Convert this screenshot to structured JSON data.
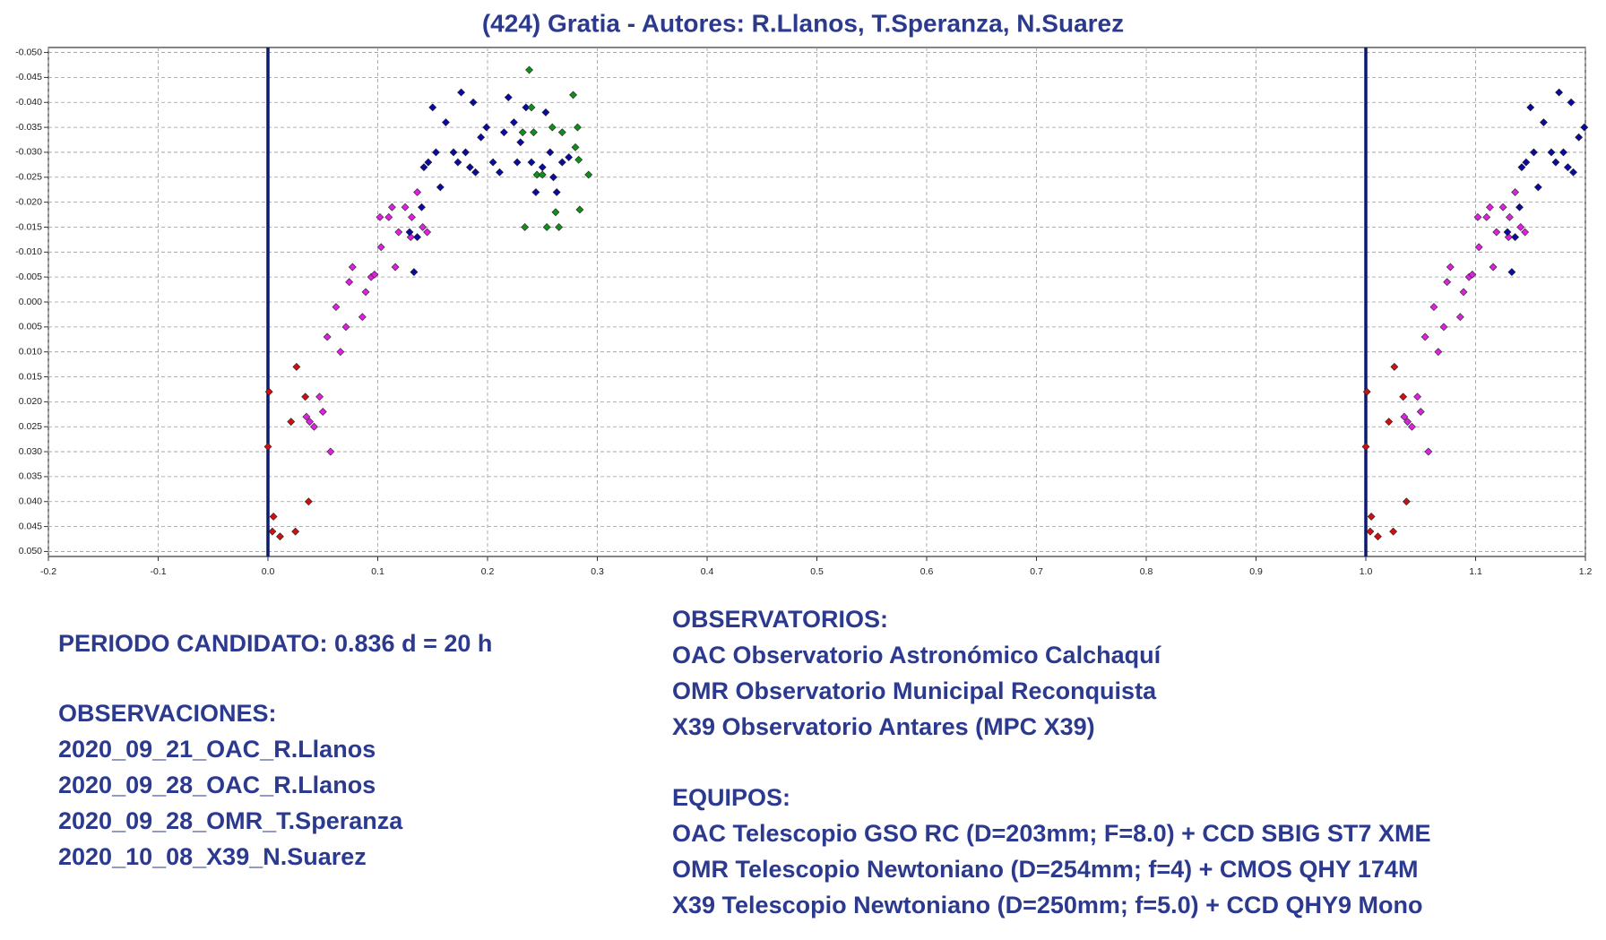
{
  "chart_data": {
    "type": "scatter",
    "title": "(424) Gratia - Autores: R.Llanos, T.Speranza, N.Suarez",
    "xlim": [
      -0.2,
      1.2
    ],
    "ylim": [
      -0.051,
      0.051
    ],
    "y_inverted": true,
    "grid": true,
    "vlines": [
      0,
      1
    ],
    "vline_color": "#0c1a6e",
    "xticks": [
      -0.2,
      -0.1,
      {
        "value": 0,
        "label": "0.0"
      },
      0.1,
      0.2,
      0.3,
      0.4,
      0.5,
      0.6,
      0.7,
      0.8,
      0.9,
      {
        "value": 1,
        "label": "1.0"
      },
      1.1,
      1.2
    ],
    "yticks": [
      {
        "value": -0.05,
        "label": "-0.050"
      },
      {
        "value": -0.045,
        "label": "-0.045"
      },
      {
        "value": -0.04,
        "label": "-0.040"
      },
      {
        "value": -0.035,
        "label": "-0.035"
      },
      {
        "value": -0.03,
        "label": "-0.030"
      },
      {
        "value": -0.025,
        "label": "-0.025"
      },
      {
        "value": -0.02,
        "label": "-0.020"
      },
      {
        "value": -0.015,
        "label": "-0.015"
      },
      {
        "value": -0.01,
        "label": "-0.010"
      },
      {
        "value": -0.005,
        "label": "-0.005"
      },
      {
        "value": 0,
        "label": "0.000"
      },
      {
        "value": 0.005,
        "label": "0.005"
      },
      {
        "value": 0.01,
        "label": "0.010"
      },
      {
        "value": 0.015,
        "label": "0.015"
      },
      {
        "value": 0.02,
        "label": "0.020"
      },
      {
        "value": 0.025,
        "label": "0.025"
      },
      {
        "value": 0.03,
        "label": "0.030"
      },
      {
        "value": 0.035,
        "label": "0.035"
      },
      {
        "value": 0.04,
        "label": "0.040"
      },
      {
        "value": 0.045,
        "label": "0.045"
      },
      {
        "value": 0.05,
        "label": "0.050"
      }
    ],
    "series": [
      {
        "color": "#d01010",
        "x": [
          0,
          0.001,
          0.005,
          0.004,
          0.011,
          0.021,
          0.025,
          0.026,
          0.034,
          0.037,
          1,
          1.001,
          1.005,
          1.004,
          1.011,
          1.021,
          1.025,
          1.026,
          1.034,
          1.037
        ],
        "values": [
          0.029,
          0.018,
          0.043,
          0.046,
          0.047,
          0.024,
          0.046,
          0.013,
          0.019,
          0.04,
          0.029,
          0.018,
          0.043,
          0.046,
          0.047,
          0.024,
          0.046,
          0.013,
          0.019,
          0.04
        ]
      },
      {
        "color": "#e020e0",
        "x": [
          0.035,
          0.038,
          0.042,
          0.047,
          0.05,
          0.057,
          0.054,
          0.062,
          0.066,
          0.071,
          0.074,
          0.077,
          0.086,
          0.089,
          0.094,
          0.097,
          0.103,
          0.102,
          0.11,
          0.113,
          0.119,
          0.116,
          0.125,
          0.131,
          0.136,
          0.141,
          0.145,
          0.13,
          1.035,
          1.038,
          1.042,
          1.047,
          1.05,
          1.057,
          1.054,
          1.062,
          1.066,
          1.071,
          1.074,
          1.077,
          1.086,
          1.089,
          1.094,
          1.097,
          1.103,
          1.102,
          1.11,
          1.113,
          1.119,
          1.116,
          1.125,
          1.131,
          1.136,
          1.141,
          1.145,
          1.13
        ],
        "values": [
          0.023,
          0.024,
          0.025,
          0.019,
          0.022,
          0.03,
          0.007,
          0.001,
          0.01,
          0.005,
          -0.004,
          -0.007,
          0.003,
          -0.002,
          -0.005,
          -0.0055,
          -0.011,
          -0.017,
          -0.017,
          -0.019,
          -0.014,
          -0.007,
          -0.019,
          -0.017,
          -0.022,
          -0.015,
          -0.014,
          -0.013,
          0.023,
          0.024,
          0.025,
          0.019,
          0.022,
          0.03,
          0.007,
          0.001,
          0.01,
          0.005,
          -0.004,
          -0.007,
          0.003,
          -0.002,
          -0.005,
          -0.0055,
          -0.011,
          -0.017,
          -0.017,
          -0.019,
          -0.014,
          -0.007,
          -0.019,
          -0.017,
          -0.022,
          -0.015,
          -0.014,
          -0.013
        ]
      },
      {
        "color": "#0a0aa0",
        "x": [
          0.133,
          0.129,
          0.136,
          0.14,
          0.142,
          0.146,
          0.15,
          0.153,
          0.157,
          0.162,
          0.169,
          0.173,
          0.176,
          0.18,
          0.184,
          0.187,
          0.189,
          0.194,
          0.199,
          0.205,
          0.211,
          0.215,
          0.219,
          0.224,
          0.227,
          0.23,
          0.235,
          0.24,
          0.244,
          0.25,
          0.253,
          0.257,
          0.26,
          0.263,
          0.268,
          0.274,
          1.133,
          1.129,
          1.136,
          1.14,
          1.142,
          1.146,
          1.15,
          1.153,
          1.157,
          1.162,
          1.169,
          1.173,
          1.176,
          1.18,
          1.184,
          1.187,
          1.189,
          1.194,
          1.199
        ],
        "values": [
          -0.006,
          -0.014,
          -0.013,
          -0.019,
          -0.027,
          -0.028,
          -0.039,
          -0.03,
          -0.023,
          -0.036,
          -0.03,
          -0.028,
          -0.042,
          -0.03,
          -0.027,
          -0.04,
          -0.026,
          -0.033,
          -0.035,
          -0.028,
          -0.026,
          -0.034,
          -0.041,
          -0.036,
          -0.028,
          -0.032,
          -0.039,
          -0.028,
          -0.022,
          -0.027,
          -0.038,
          -0.03,
          -0.025,
          -0.022,
          -0.028,
          -0.029,
          -0.006,
          -0.014,
          -0.013,
          -0.019,
          -0.027,
          -0.028,
          -0.039,
          -0.03,
          -0.023,
          -0.036,
          -0.03,
          -0.028,
          -0.042,
          -0.03,
          -0.027,
          -0.04,
          -0.026,
          -0.033,
          -0.035
        ]
      },
      {
        "color": "#10901a",
        "x": [
          0.234,
          0.238,
          0.24,
          0.232,
          0.242,
          0.245,
          0.25,
          0.254,
          0.259,
          0.262,
          0.265,
          0.268,
          0.278,
          0.282,
          0.28,
          0.284,
          0.292,
          0.283
        ],
        "values": [
          -0.015,
          -0.0465,
          -0.039,
          -0.034,
          -0.034,
          -0.0255,
          -0.0255,
          -0.015,
          -0.035,
          -0.018,
          -0.015,
          -0.034,
          -0.0415,
          -0.035,
          -0.031,
          -0.0185,
          -0.0255,
          -0.0285
        ]
      }
    ]
  },
  "notes": {
    "period": "PERIODO CANDIDATO: 0.836 d = 20 h",
    "observations_heading": "OBSERVACIONES:",
    "observations": [
      "2020_09_21_OAC_R.Llanos",
      "2020_09_28_OAC_R.Llanos",
      "2020_09_28_OMR_T.Speranza",
      "2020_10_08_X39_N.Suarez"
    ],
    "observatories_heading": "OBSERVATORIOS:",
    "observatories": [
      "OAC Observatorio Astronómico Calchaquí",
      "OMR Observatorio Municipal Reconquista",
      "X39 Observatorio Antares (MPC X39)"
    ],
    "equipment_heading": "EQUIPOS:",
    "equipment": [
      "OAC Telescopio GSO RC (D=203mm; F=8.0) + CCD SBIG ST7 XME",
      "OMR Telescopio Newtoniano (D=254mm; f=4) + CMOS QHY 174M",
      "X39 Telescopio Newtoniano (D=250mm; f=5.0) + CCD QHY9 Mono"
    ]
  }
}
